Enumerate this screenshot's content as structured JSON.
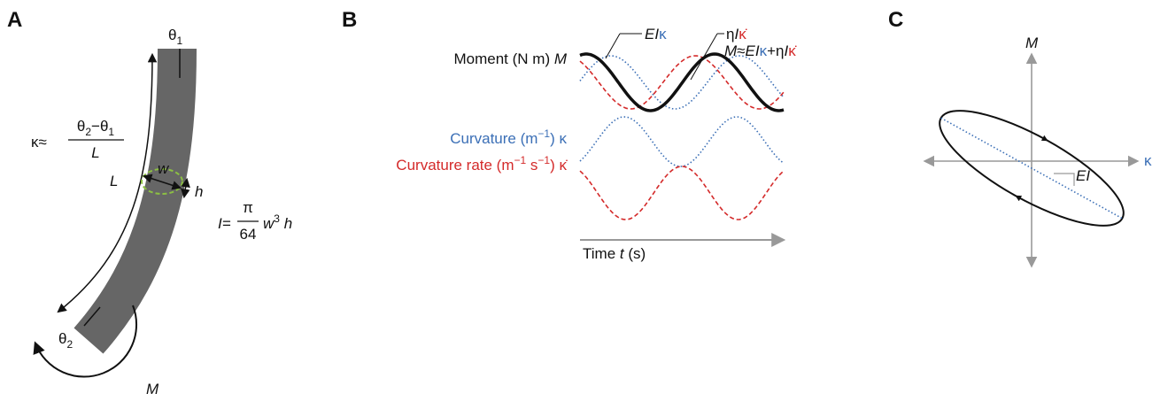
{
  "panels": {
    "A": {
      "label": "A",
      "theta1": [
        "θ",
        "1"
      ],
      "theta2": [
        "θ",
        "2"
      ],
      "curvature": {
        "lhs": "κ≈",
        "numerator": [
          "θ",
          "2",
          "−θ",
          "1"
        ],
        "denominator": "L"
      },
      "length": "L",
      "width": "w",
      "height": "h",
      "inertia": {
        "lhs": "I=",
        "numerator": "π",
        "denominator": "64",
        "rhs": [
          "w",
          "3",
          " h"
        ]
      },
      "moment": "M"
    },
    "B": {
      "label": "B",
      "elastic": [
        "EI",
        "κ"
      ],
      "viscous": [
        "η",
        "I",
        "κ̇"
      ],
      "sum": [
        "M",
        "≈",
        "EI",
        "κ",
        "+η",
        "I",
        "κ̇"
      ],
      "moment": [
        "Moment (N m) ",
        "M"
      ],
      "curvature": [
        "Curvature (m",
        "−1",
        ") κ"
      ],
      "curvature_rate": [
        "Curvature rate (m",
        "−1",
        " s",
        "−1",
        ") κ̇"
      ],
      "time": [
        "Time ",
        "t",
        " (s)"
      ]
    },
    "C": {
      "label": "C",
      "y_axis": "M",
      "x_axis": "κ",
      "slope": "EI"
    }
  }
}
